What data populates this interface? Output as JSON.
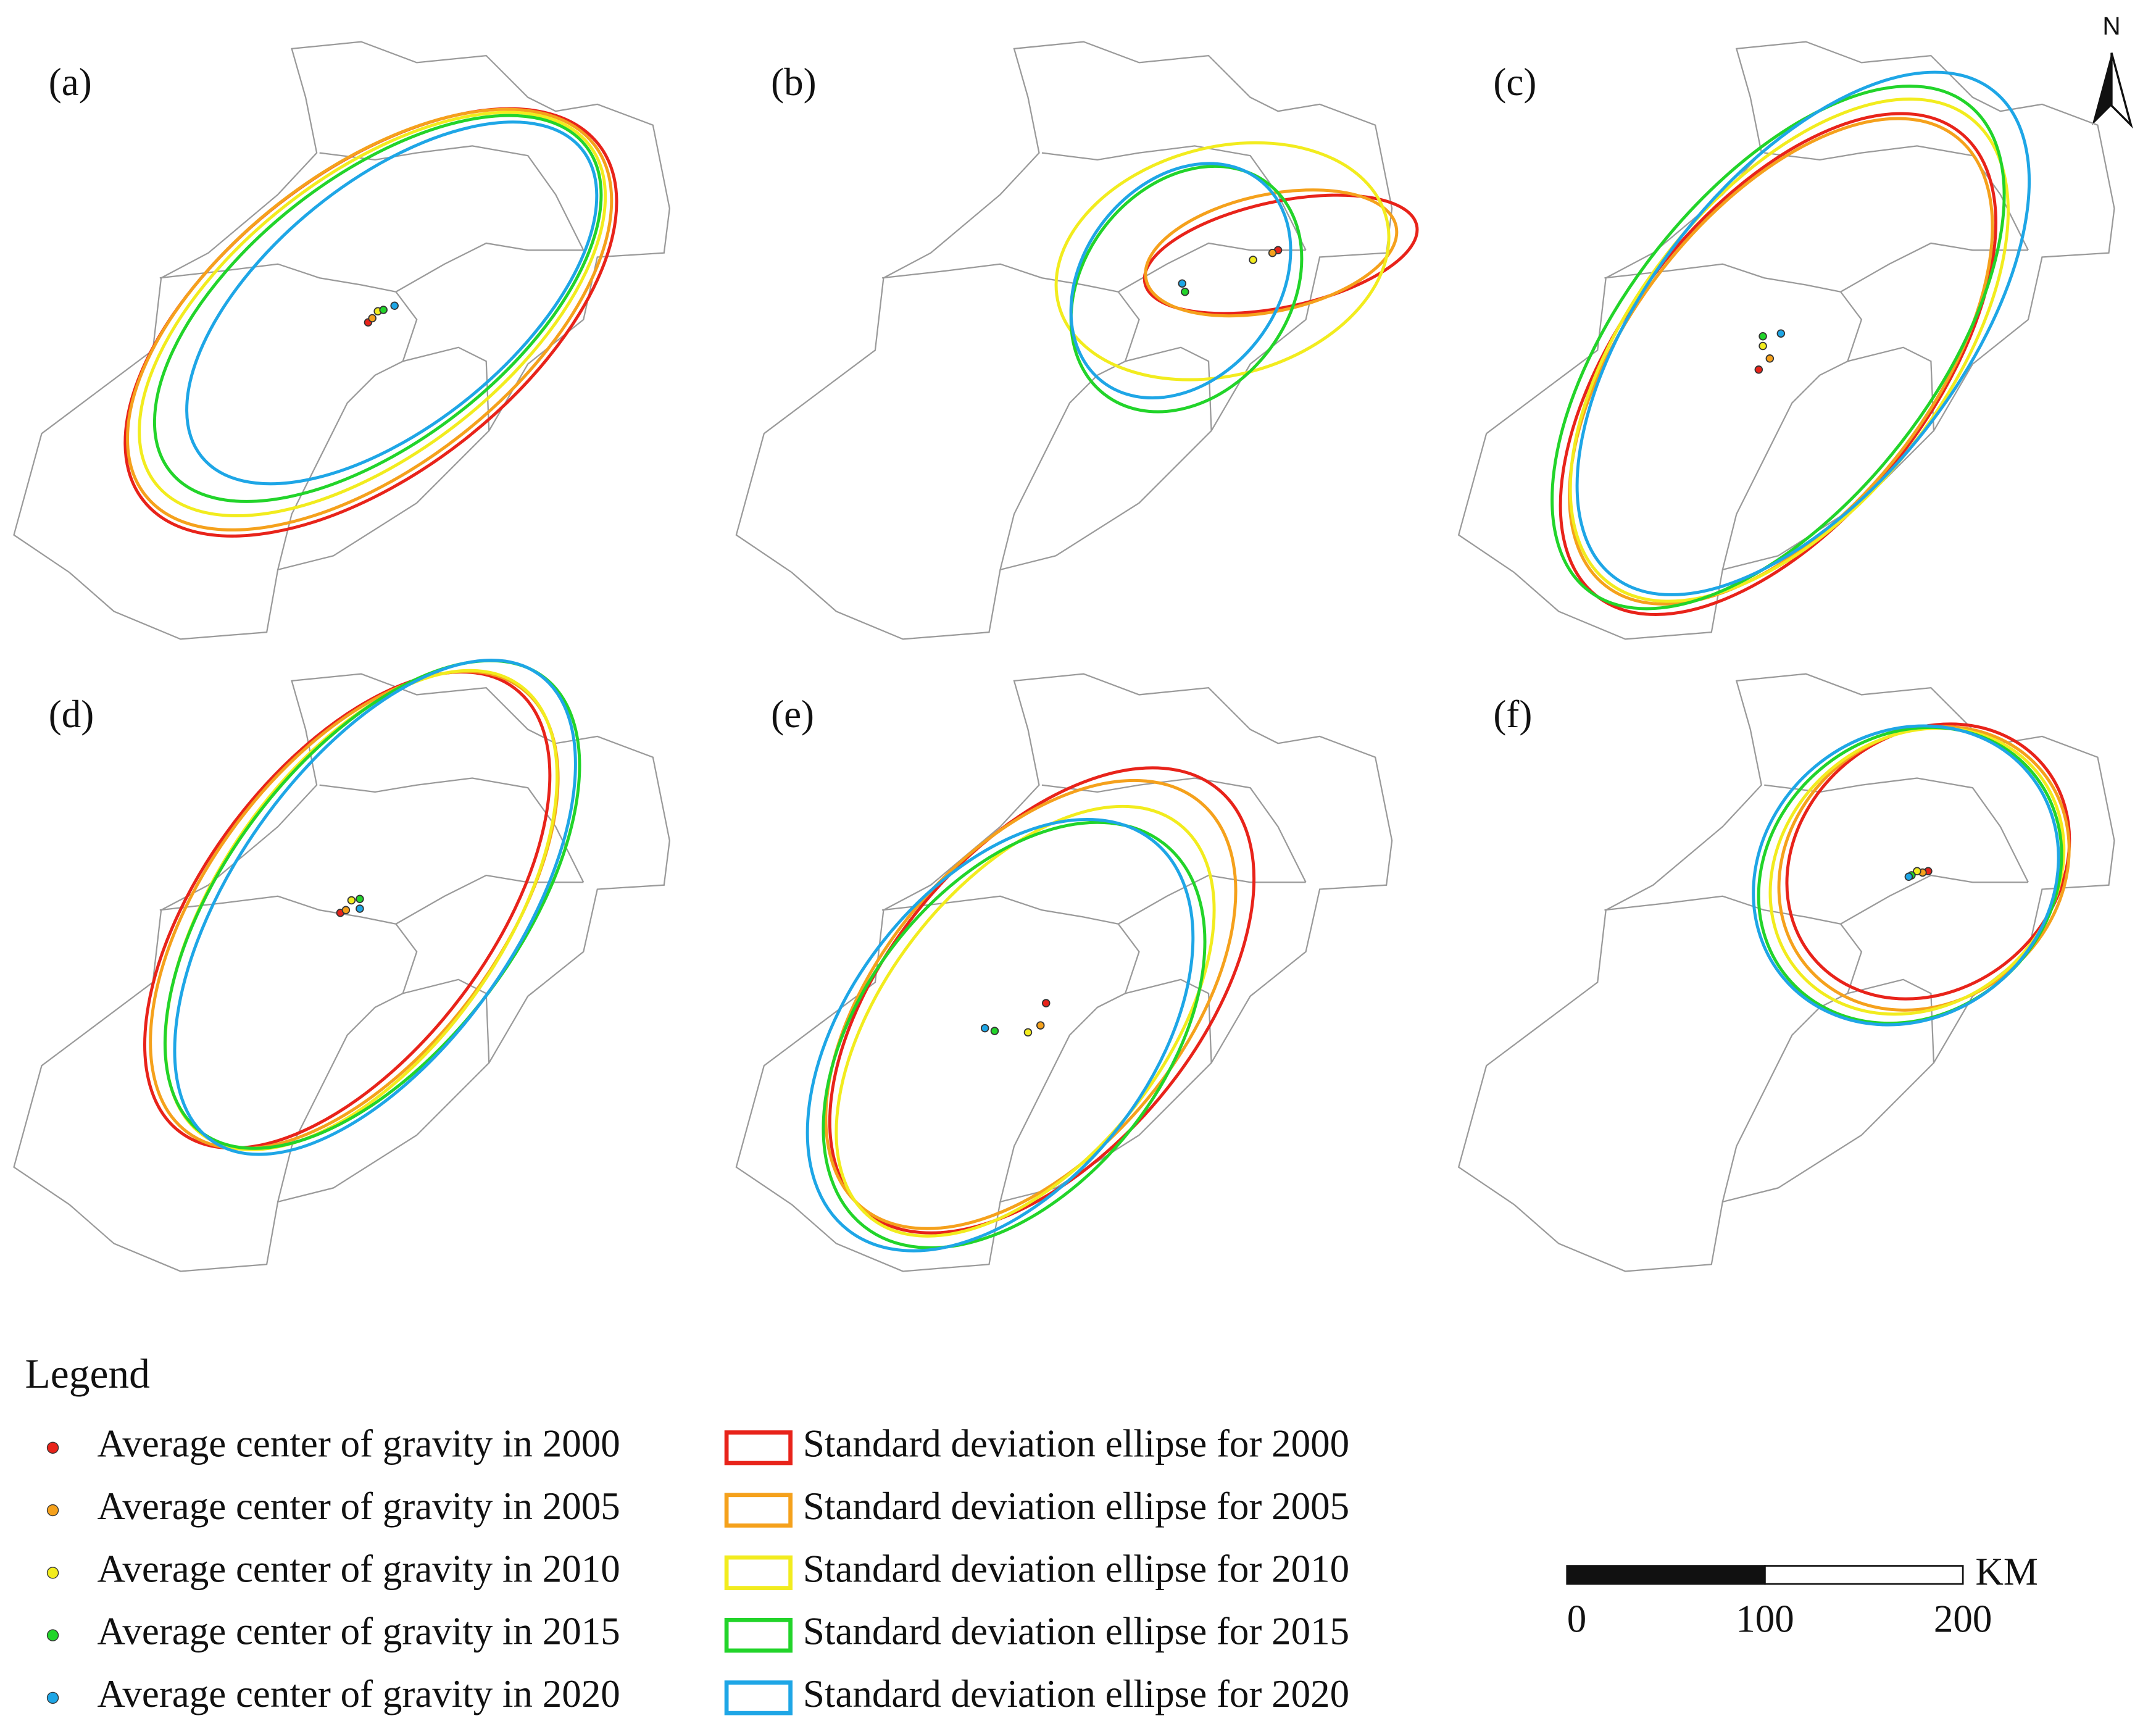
{
  "panels": [
    {
      "label": "(a)"
    },
    {
      "label": "(b)"
    },
    {
      "label": "(c)"
    },
    {
      "label": "(d)"
    },
    {
      "label": "(e)"
    },
    {
      "label": "(f)"
    }
  ],
  "north": "N",
  "legend": {
    "title": "Legend",
    "items": [
      {
        "point": "Average center of gravity in 2000",
        "ellipse": "Standard deviation ellipse for 2000",
        "color": "#e8231a"
      },
      {
        "point": "Average center of gravity in 2005",
        "ellipse": "Standard deviation ellipse for 2005",
        "color": "#f5a11c"
      },
      {
        "point": "Average center of gravity in 2010",
        "ellipse": "Standard deviation ellipse for 2010",
        "color": "#f2ec1e"
      },
      {
        "point": "Average center of gravity in 2015",
        "ellipse": "Standard deviation ellipse for 2015",
        "color": "#22d42a"
      },
      {
        "point": "Average center of gravity in 2020",
        "ellipse": "Standard deviation ellipse for 2020",
        "color": "#1ea6e6"
      }
    ]
  },
  "scale_bar": {
    "ticks": [
      0,
      100,
      200
    ],
    "unit": "KM"
  }
}
